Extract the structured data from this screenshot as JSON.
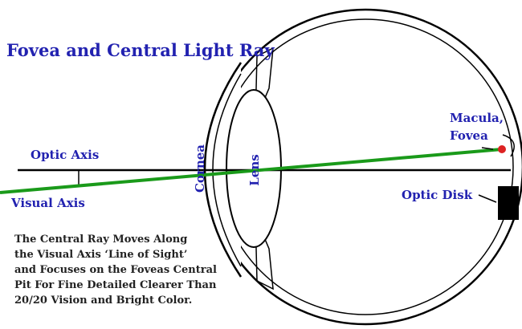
{
  "title": "Fovea and Central Light Ray",
  "labels": {
    "optic_axis": "Optic Axis",
    "visual_axis": "Visual Axis",
    "cornea": "Cornea",
    "lens": "Lens",
    "macula": "Macula,",
    "fovea": "Fovea",
    "optic_disk": "Optic Disk"
  },
  "description": [
    "The Central Ray Moves Along",
    "the Visual Axis ‘Line of Sight’",
    "and Focuses on the Foveas Central",
    "Pit For Fine Detailed Clearer Than",
    "20/20 Vision and Bright Color."
  ]
}
